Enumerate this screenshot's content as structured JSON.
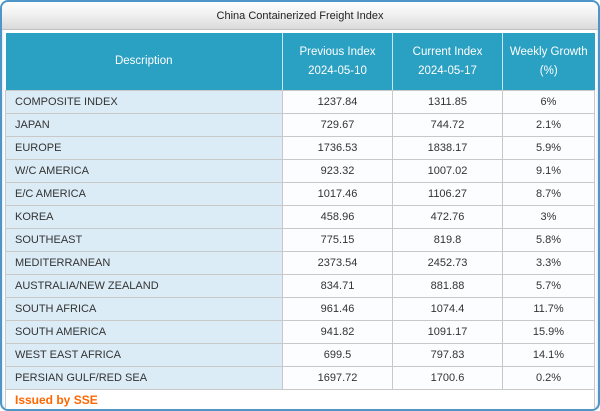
{
  "title": "China Containerized Freight Index",
  "table": {
    "headers": [
      "Description",
      "Previous Index\n2024-05-10",
      "Current Index\n2024-05-17",
      "Weekly Growth\n(%)"
    ],
    "rows": [
      {
        "description": "COMPOSITE INDEX",
        "previous": "1237.84",
        "current": "1311.85",
        "growth": "6%"
      },
      {
        "description": "JAPAN",
        "previous": "729.67",
        "current": "744.72",
        "growth": "2.1%"
      },
      {
        "description": "EUROPE",
        "previous": "1736.53",
        "current": "1838.17",
        "growth": "5.9%"
      },
      {
        "description": "W/C AMERICA",
        "previous": "923.32",
        "current": "1007.02",
        "growth": "9.1%"
      },
      {
        "description": "E/C AMERICA",
        "previous": "1017.46",
        "current": "1106.27",
        "growth": "8.7%"
      },
      {
        "description": "KOREA",
        "previous": "458.96",
        "current": "472.76",
        "growth": "3%"
      },
      {
        "description": "SOUTHEAST",
        "previous": "775.15",
        "current": "819.8",
        "growth": "5.8%"
      },
      {
        "description": "MEDITERRANEAN",
        "previous": "2373.54",
        "current": "2452.73",
        "growth": "3.3%"
      },
      {
        "description": "AUSTRALIA/NEW ZEALAND",
        "previous": "834.71",
        "current": "881.88",
        "growth": "5.7%"
      },
      {
        "description": "SOUTH AFRICA",
        "previous": "961.46",
        "current": "1074.4",
        "growth": "11.7%"
      },
      {
        "description": "SOUTH AMERICA",
        "previous": "941.82",
        "current": "1091.17",
        "growth": "15.9%"
      },
      {
        "description": "WEST EAST AFRICA",
        "previous": "699.5",
        "current": "797.83",
        "growth": "14.1%"
      },
      {
        "description": "PERSIAN GULF/RED SEA",
        "previous": "1697.72",
        "current": "1700.6",
        "growth": "0.2%"
      }
    ]
  },
  "footer": {
    "issued_by": "Issued by SSE"
  },
  "colors": {
    "outer_border": "#4e96c8",
    "header_bg": "#2aa0c2",
    "header_text": "#ffffff",
    "description_cell_bg": "#dbecf7",
    "value_cell_bg": "#fcfdfe",
    "cell_border": "#c8c8c8",
    "issued_by_text": "#ff6600"
  }
}
